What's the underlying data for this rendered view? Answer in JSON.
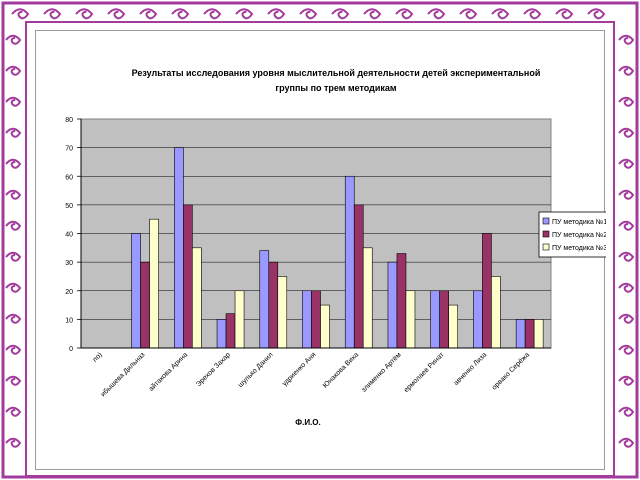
{
  "colors": {
    "frame_purple": "#a23b9c",
    "plot_bg": "#c0c0c0",
    "series": [
      "#9999ff",
      "#993366",
      "#ffffcc"
    ]
  },
  "chart_data": {
    "type": "bar",
    "title_lines": [
      "Результаты исследования уровня мыслительной деятельности детей экспериментальной",
      "группы по трем методикам"
    ],
    "xlabel": "Ф.И.О.",
    "ylabel": "",
    "ylim": [
      0,
      80
    ],
    "yticks": [
      "0",
      "10",
      "20",
      "30",
      "40",
      "50",
      "60",
      "70",
      "80"
    ],
    "grid": true,
    "legend_position": "right",
    "categories": [
      "ло)",
      "ибышева Дильназ",
      "айтакова Арина",
      "Эрехов Захар",
      "шулько Данил",
      "удриенко Аня",
      "Юнакова Вика",
      "злименко Артём",
      "ермолаев Ринат",
      "авченко Лиза",
      "орвако Серёжа"
    ],
    "series": [
      {
        "name": "ПУ методика №1",
        "values": [
          0,
          40,
          70,
          10,
          34,
          20,
          60,
          30,
          20,
          20,
          10
        ]
      },
      {
        "name": "ПУ методика №2",
        "values": [
          0,
          30,
          50,
          12,
          30,
          20,
          50,
          33,
          20,
          40,
          10
        ]
      },
      {
        "name": "ПУ методика №3",
        "values": [
          0,
          45,
          35,
          20,
          25,
          15,
          35,
          20,
          15,
          25,
          10
        ]
      }
    ]
  }
}
